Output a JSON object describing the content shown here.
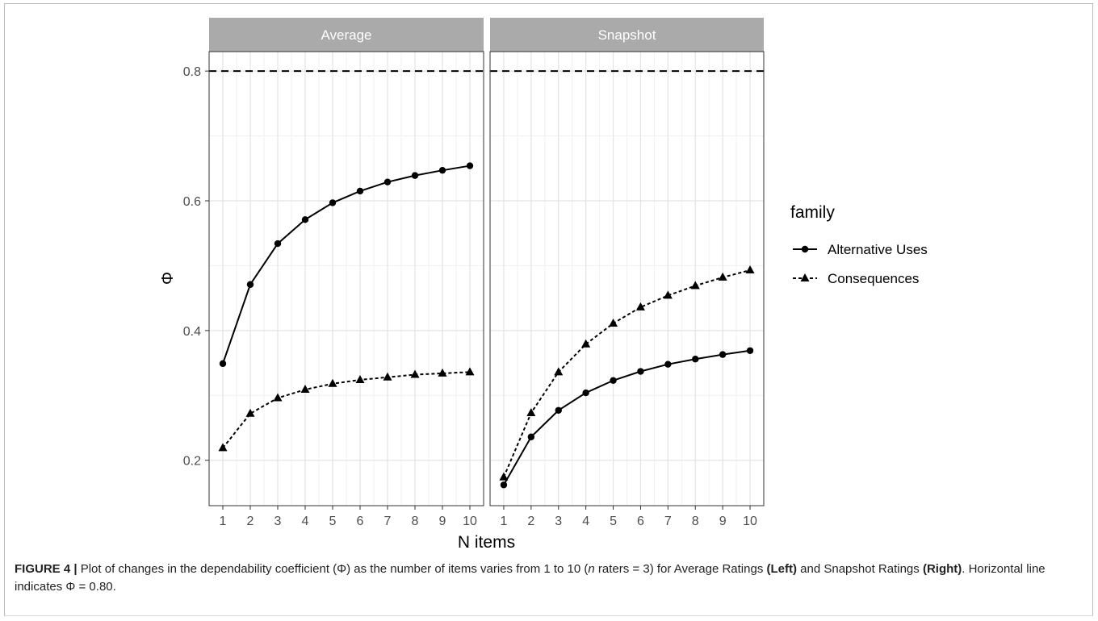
{
  "chart_data": {
    "type": "line",
    "x": [
      1,
      2,
      3,
      4,
      5,
      6,
      7,
      8,
      9,
      10
    ],
    "xlabel": "N items",
    "ylabel": "Φ",
    "ylim": [
      0.13,
      0.83
    ],
    "yticks": [
      0.2,
      0.4,
      0.6,
      0.8
    ],
    "xticks": [
      "1",
      "2",
      "3",
      "4",
      "5",
      "6",
      "7",
      "8",
      "9",
      "10"
    ],
    "grid": true,
    "reference_line": 0.8,
    "legend": {
      "title": "family",
      "placement": "right",
      "entries": [
        "Alternative Uses",
        "Consequences"
      ]
    },
    "panels": [
      {
        "title": "Average",
        "series": [
          {
            "name": "Alternative Uses",
            "values": [
              0.349,
              0.471,
              0.534,
              0.571,
              0.597,
              0.615,
              0.629,
              0.639,
              0.647,
              0.654
            ]
          },
          {
            "name": "Consequences",
            "values": [
              0.219,
              0.272,
              0.296,
              0.309,
              0.318,
              0.324,
              0.328,
              0.332,
              0.334,
              0.336
            ]
          }
        ]
      },
      {
        "title": "Snapshot",
        "series": [
          {
            "name": "Alternative Uses",
            "values": [
              0.162,
              0.236,
              0.277,
              0.304,
              0.323,
              0.337,
              0.348,
              0.356,
              0.363,
              0.369
            ]
          },
          {
            "name": "Consequences",
            "values": [
              0.174,
              0.273,
              0.336,
              0.379,
              0.411,
              0.436,
              0.454,
              0.469,
              0.482,
              0.493
            ]
          }
        ]
      }
    ]
  },
  "caption": {
    "label": "FIGURE 4 |",
    "text1": " Plot of changes in the dependability coefficient (Φ) as the number of items varies from 1 to 10 (",
    "n_italic": "n",
    "text2": " raters = 3) for Average Ratings ",
    "left_bold": "(Left)",
    "text3": " and Snapshot Ratings ",
    "right_bold": "(Right)",
    "text4": ". Horizontal line indicates Φ = 0.80."
  }
}
